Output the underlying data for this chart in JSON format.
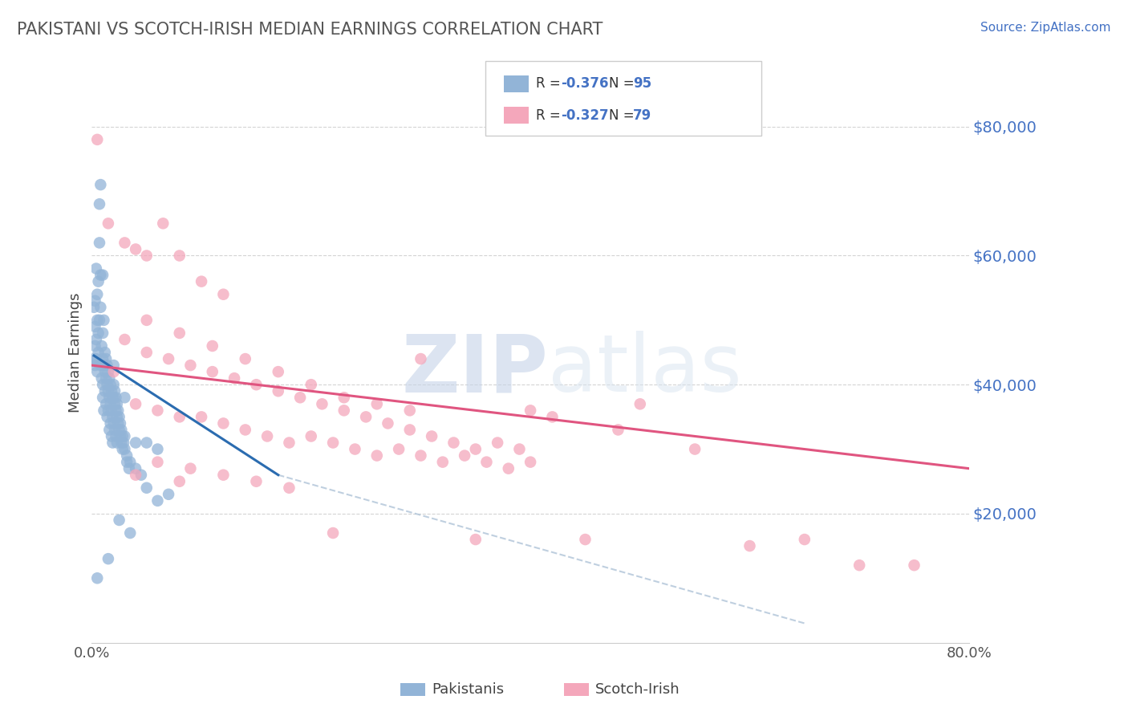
{
  "title": "PAKISTANI VS SCOTCH-IRISH MEDIAN EARNINGS CORRELATION CHART",
  "source": "Source: ZipAtlas.com",
  "ylabel": "Median Earnings",
  "yticks": [
    20000,
    40000,
    60000,
    80000
  ],
  "ytick_labels": [
    "$20,000",
    "$40,000",
    "$60,000",
    "$80,000"
  ],
  "xlim": [
    0,
    80
  ],
  "ylim": [
    0,
    90000
  ],
  "blue_color": "#92b4d7",
  "pink_color": "#f4a7bb",
  "blue_line_color": "#2b6cb0",
  "pink_line_color": "#e05580",
  "dash_color": "#b0c4d8",
  "blue_R": "-0.376",
  "blue_N": "95",
  "pink_R": "-0.327",
  "pink_N": "79",
  "watermark_zip": "ZIP",
  "watermark_atlas": "atlas",
  "blue_line_x": [
    0.2,
    17.0
  ],
  "blue_line_y": [
    44500,
    26000
  ],
  "pink_line_x": [
    0.0,
    80.0
  ],
  "pink_line_y": [
    43000,
    27000
  ],
  "dash_line_x": [
    17.0,
    65.0
  ],
  "dash_line_y": [
    26000,
    3000
  ],
  "blue_scatter": [
    [
      0.2,
      52000
    ],
    [
      0.3,
      49000
    ],
    [
      0.3,
      46000
    ],
    [
      0.4,
      44000
    ],
    [
      0.4,
      47000
    ],
    [
      0.5,
      50000
    ],
    [
      0.5,
      54000
    ],
    [
      0.6,
      48000
    ],
    [
      0.6,
      45000
    ],
    [
      0.7,
      68000
    ],
    [
      0.7,
      62000
    ],
    [
      0.8,
      57000
    ],
    [
      0.8,
      43000
    ],
    [
      0.9,
      41000
    ],
    [
      0.9,
      46000
    ],
    [
      1.0,
      44000
    ],
    [
      1.0,
      40000
    ],
    [
      1.0,
      38000
    ],
    [
      1.1,
      43000
    ],
    [
      1.1,
      36000
    ],
    [
      1.2,
      42000
    ],
    [
      1.2,
      39000
    ],
    [
      1.3,
      41000
    ],
    [
      1.3,
      37000
    ],
    [
      1.4,
      40000
    ],
    [
      1.4,
      35000
    ],
    [
      1.5,
      39000
    ],
    [
      1.5,
      36000
    ],
    [
      1.6,
      38000
    ],
    [
      1.6,
      33000
    ],
    [
      1.7,
      37000
    ],
    [
      1.7,
      34000
    ],
    [
      1.8,
      36000
    ],
    [
      1.8,
      32000
    ],
    [
      1.9,
      35000
    ],
    [
      1.9,
      31000
    ],
    [
      2.0,
      38000
    ],
    [
      2.0,
      34000
    ],
    [
      2.1,
      37000
    ],
    [
      2.1,
      33000
    ],
    [
      2.2,
      36000
    ],
    [
      2.2,
      32000
    ],
    [
      2.3,
      35000
    ],
    [
      2.3,
      31000
    ],
    [
      2.4,
      34000
    ],
    [
      2.5,
      33000
    ],
    [
      2.6,
      32000
    ],
    [
      2.7,
      31000
    ],
    [
      2.8,
      30000
    ],
    [
      3.0,
      32000
    ],
    [
      3.2,
      28000
    ],
    [
      3.4,
      27000
    ],
    [
      0.3,
      53000
    ],
    [
      0.4,
      58000
    ],
    [
      0.5,
      42000
    ],
    [
      0.6,
      56000
    ],
    [
      0.7,
      50000
    ],
    [
      0.8,
      52000
    ],
    [
      1.0,
      48000
    ],
    [
      1.1,
      50000
    ],
    [
      1.2,
      45000
    ],
    [
      1.3,
      44000
    ],
    [
      1.4,
      43000
    ],
    [
      1.5,
      42000
    ],
    [
      1.6,
      41000
    ],
    [
      1.7,
      40000
    ],
    [
      1.8,
      39000
    ],
    [
      1.9,
      38000
    ],
    [
      2.0,
      40000
    ],
    [
      2.1,
      39000
    ],
    [
      2.2,
      38000
    ],
    [
      2.3,
      37000
    ],
    [
      2.4,
      36000
    ],
    [
      2.5,
      35000
    ],
    [
      2.6,
      34000
    ],
    [
      2.7,
      33000
    ],
    [
      2.8,
      32000
    ],
    [
      2.9,
      31000
    ],
    [
      3.0,
      30000
    ],
    [
      3.2,
      29000
    ],
    [
      3.5,
      28000
    ],
    [
      4.0,
      27000
    ],
    [
      4.5,
      26000
    ],
    [
      5.0,
      24000
    ],
    [
      6.0,
      22000
    ],
    [
      7.0,
      23000
    ],
    [
      0.5,
      10000
    ],
    [
      1.5,
      13000
    ],
    [
      2.5,
      19000
    ],
    [
      3.5,
      17000
    ],
    [
      1.0,
      57000
    ],
    [
      0.8,
      71000
    ],
    [
      4.0,
      31000
    ],
    [
      5.0,
      31000
    ],
    [
      6.0,
      30000
    ],
    [
      0.2,
      44000
    ],
    [
      0.3,
      43000
    ],
    [
      2.0,
      43000
    ],
    [
      3.0,
      38000
    ]
  ],
  "pink_scatter": [
    [
      0.5,
      78000
    ],
    [
      1.5,
      65000
    ],
    [
      3.0,
      62000
    ],
    [
      4.0,
      61000
    ],
    [
      5.0,
      60000
    ],
    [
      6.5,
      65000
    ],
    [
      8.0,
      60000
    ],
    [
      10.0,
      56000
    ],
    [
      12.0,
      54000
    ],
    [
      3.0,
      47000
    ],
    [
      5.0,
      45000
    ],
    [
      7.0,
      44000
    ],
    [
      9.0,
      43000
    ],
    [
      11.0,
      42000
    ],
    [
      13.0,
      41000
    ],
    [
      15.0,
      40000
    ],
    [
      17.0,
      39000
    ],
    [
      19.0,
      38000
    ],
    [
      21.0,
      37000
    ],
    [
      23.0,
      36000
    ],
    [
      25.0,
      35000
    ],
    [
      27.0,
      34000
    ],
    [
      29.0,
      33000
    ],
    [
      31.0,
      32000
    ],
    [
      33.0,
      31000
    ],
    [
      35.0,
      30000
    ],
    [
      37.0,
      31000
    ],
    [
      39.0,
      30000
    ],
    [
      4.0,
      37000
    ],
    [
      6.0,
      36000
    ],
    [
      8.0,
      35000
    ],
    [
      10.0,
      35000
    ],
    [
      12.0,
      34000
    ],
    [
      14.0,
      33000
    ],
    [
      16.0,
      32000
    ],
    [
      18.0,
      31000
    ],
    [
      20.0,
      32000
    ],
    [
      22.0,
      31000
    ],
    [
      24.0,
      30000
    ],
    [
      26.0,
      29000
    ],
    [
      28.0,
      30000
    ],
    [
      30.0,
      29000
    ],
    [
      32.0,
      28000
    ],
    [
      34.0,
      29000
    ],
    [
      36.0,
      28000
    ],
    [
      38.0,
      27000
    ],
    [
      40.0,
      28000
    ],
    [
      5.0,
      50000
    ],
    [
      8.0,
      48000
    ],
    [
      11.0,
      46000
    ],
    [
      14.0,
      44000
    ],
    [
      17.0,
      42000
    ],
    [
      20.0,
      40000
    ],
    [
      23.0,
      38000
    ],
    [
      26.0,
      37000
    ],
    [
      29.0,
      36000
    ],
    [
      6.0,
      28000
    ],
    [
      9.0,
      27000
    ],
    [
      12.0,
      26000
    ],
    [
      15.0,
      25000
    ],
    [
      18.0,
      24000
    ],
    [
      42.0,
      35000
    ],
    [
      48.0,
      33000
    ],
    [
      55.0,
      30000
    ],
    [
      45.0,
      16000
    ],
    [
      60.0,
      15000
    ],
    [
      65.0,
      16000
    ],
    [
      22.0,
      17000
    ],
    [
      35.0,
      16000
    ],
    [
      70.0,
      12000
    ],
    [
      75.0,
      12000
    ],
    [
      30.0,
      44000
    ],
    [
      40.0,
      36000
    ],
    [
      50.0,
      37000
    ],
    [
      2.0,
      42000
    ],
    [
      4.0,
      26000
    ],
    [
      8.0,
      25000
    ]
  ]
}
